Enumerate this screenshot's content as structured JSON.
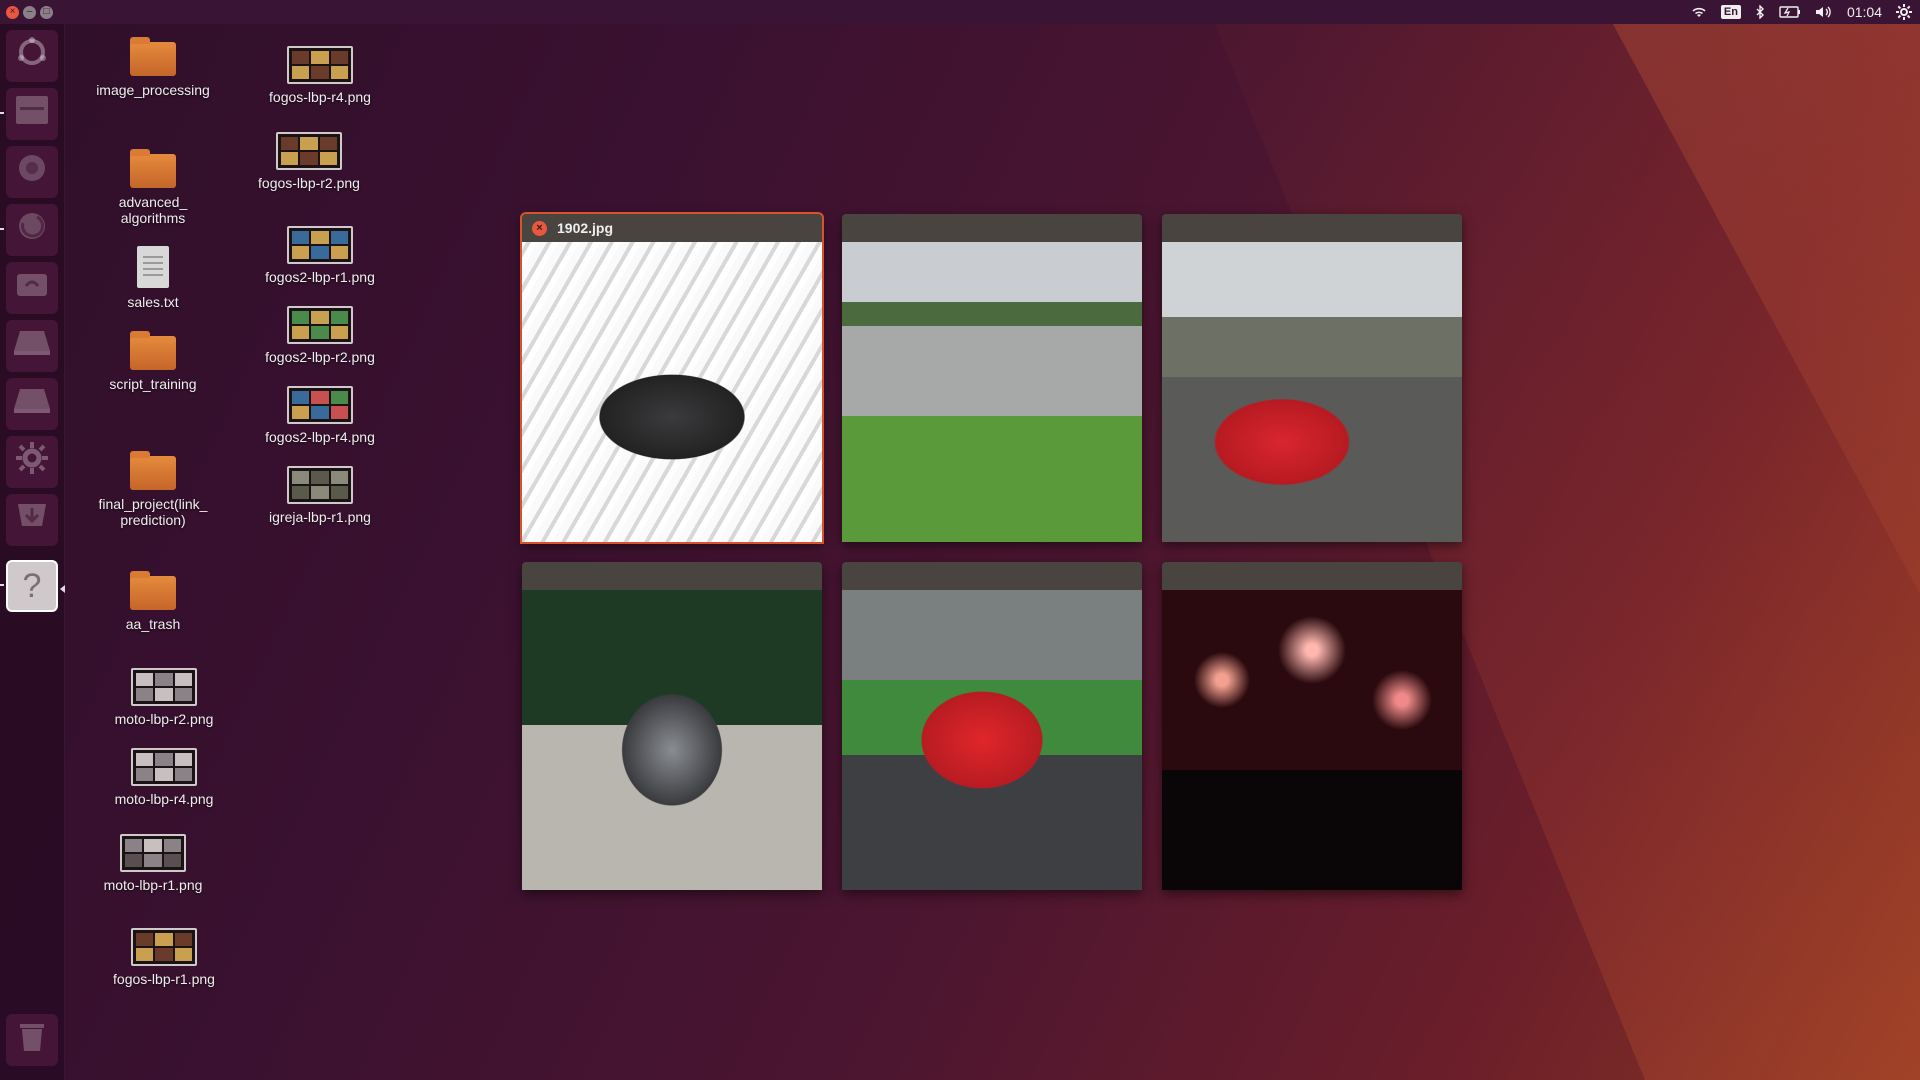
{
  "topbar": {
    "window_buttons": {
      "close": "×",
      "minimize": "–",
      "maximize": "□"
    },
    "indicators": {
      "wifi": "wifi-icon",
      "keyboard_layout": "En",
      "bluetooth": "bluetooth-icon",
      "battery": "battery-icon",
      "volume": "volume-icon",
      "clock": "01:04",
      "system": "gear-icon"
    }
  },
  "launcher": {
    "items": [
      {
        "name": "dash-home",
        "icon": "ubuntu-logo-icon"
      },
      {
        "name": "files",
        "icon": "file-cabinet-icon"
      },
      {
        "name": "browser",
        "icon": "browser-icon"
      },
      {
        "name": "firefox",
        "icon": "firefox-icon"
      },
      {
        "name": "software-center",
        "icon": "shopping-bag-icon"
      },
      {
        "name": "drive-1",
        "icon": "drive-icon"
      },
      {
        "name": "drive-2",
        "icon": "drive-icon"
      },
      {
        "name": "settings",
        "icon": "gear-icon"
      },
      {
        "name": "downloads",
        "icon": "download-icon"
      },
      {
        "name": "help",
        "icon": "question-icon",
        "glyph": "?"
      },
      {
        "name": "trash",
        "icon": "trash-icon"
      }
    ]
  },
  "desktop": {
    "icons": [
      {
        "label": "image_processing",
        "type": "folder"
      },
      {
        "label": "advanced_\nalgorithms",
        "type": "folder"
      },
      {
        "label": "sales.txt",
        "type": "text"
      },
      {
        "label": "script_training",
        "type": "folder"
      },
      {
        "label": "final_project(link_\nprediction)",
        "type": "folder"
      },
      {
        "label": "aa_trash",
        "type": "folder"
      },
      {
        "label": "moto-lbp-r2.png",
        "type": "image"
      },
      {
        "label": "moto-lbp-r4.png",
        "type": "image"
      },
      {
        "label": "moto-lbp-r1.png",
        "type": "image"
      },
      {
        "label": "fogos-lbp-r1.png",
        "type": "image"
      },
      {
        "label": "fogos-lbp-r4.png",
        "type": "image"
      },
      {
        "label": "fogos-lbp-r2.png",
        "type": "image"
      },
      {
        "label": "fogos2-lbp-r1.png",
        "type": "image"
      },
      {
        "label": "fogos2-lbp-r2.png",
        "type": "image"
      },
      {
        "label": "fogos2-lbp-r4.png",
        "type": "image"
      },
      {
        "label": "igreja-lbp-r1.png",
        "type": "image"
      }
    ]
  },
  "spread": {
    "windows": [
      {
        "title": "1902.jpg",
        "image": "sports-car-at-auto-show",
        "selected": true
      },
      {
        "title": "",
        "image": "horses-running-in-field"
      },
      {
        "title": "",
        "image": "red-race-car-with-crowd"
      },
      {
        "title": "",
        "image": "chrome-motorcycle"
      },
      {
        "title": "",
        "image": "red-ducati-racing"
      },
      {
        "title": "",
        "image": "fireworks-over-crowd"
      }
    ]
  }
}
